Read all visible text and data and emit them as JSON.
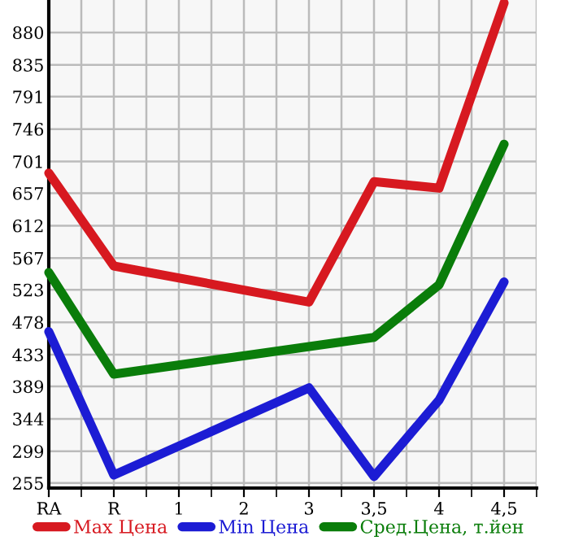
{
  "chart_data": {
    "type": "line",
    "categories": [
      "RA",
      "R",
      "1",
      "2",
      "3",
      "3,5",
      "4",
      "4,5"
    ],
    "series": [
      {
        "name": "Max Цена",
        "color": "#d71920",
        "values": [
          685,
          556,
          null,
          null,
          506,
          673,
          664,
          921
        ]
      },
      {
        "name": "Min Цена",
        "color": "#1c1cd4",
        "values": [
          465,
          266,
          null,
          null,
          387,
          264,
          370,
          534
        ]
      },
      {
        "name": "Сред.Цена, т.йен",
        "color": "#0a7d0a",
        "values": [
          547,
          406,
          null,
          null,
          null,
          457,
          530,
          725
        ]
      }
    ],
    "ylim": [
      248,
      925
    ],
    "yticks": [
      255,
      299,
      344,
      389,
      433,
      478,
      523,
      567,
      612,
      657,
      701,
      746,
      791,
      835,
      880
    ],
    "grid": true,
    "legend": "bottom",
    "marker": "none",
    "line_style": "solid"
  }
}
